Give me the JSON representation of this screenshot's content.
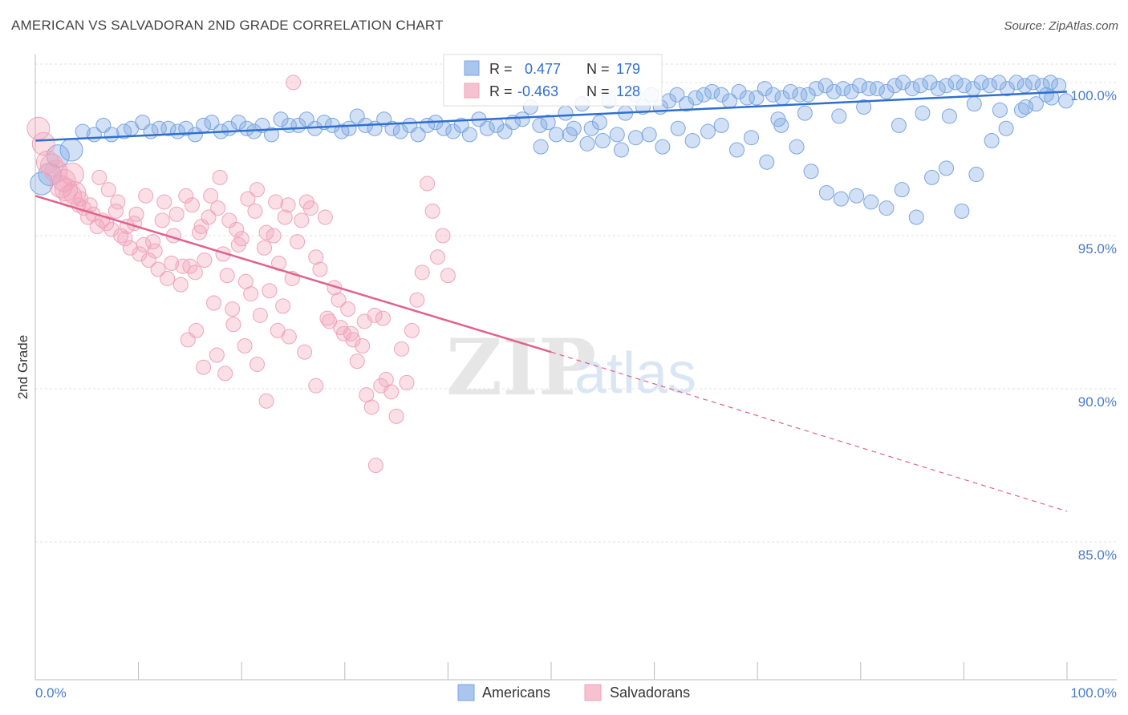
{
  "title": "AMERICAN VS SALVADORAN 2ND GRADE CORRELATION CHART",
  "source": "Source: ZipAtlas.com",
  "watermark": {
    "zip": "ZIP",
    "atlas": "atlas"
  },
  "colors": {
    "american": "#7aa6e3",
    "american_line": "#2f6fd0",
    "salvadoran": "#f0a3bb",
    "salvadoran_line": "#e0628d",
    "tick": "#4a7dc9"
  },
  "stats": {
    "americans": {
      "r_label": "R =",
      "r_value": "0.477",
      "n_label": "N =",
      "n_value": "179"
    },
    "salvadorans": {
      "r_label": "R =",
      "r_value": "-0.463",
      "n_label": "N =",
      "n_value": "128"
    }
  },
  "chart_data": {
    "type": "scatter",
    "title": "AMERICAN VS SALVADORAN 2ND GRADE CORRELATION CHART",
    "xlabel": "",
    "ylabel": "2nd Grade",
    "xlim": [
      0,
      100
    ],
    "ylim": [
      80.5,
      100.6
    ],
    "x_tick_labels": [
      "0.0%",
      "100.0%"
    ],
    "y_ticks": [
      85,
      90,
      95,
      100
    ],
    "y_tick_labels": [
      "85.0%",
      "90.0%",
      "95.0%",
      "100.0%"
    ],
    "grid": true,
    "legend_position": "bottom-center",
    "series": [
      {
        "name": "Americans",
        "color": "#7aa6e3",
        "trend": {
          "x": [
            0,
            100
          ],
          "y": [
            98.1,
            99.7
          ]
        },
        "points": [
          [
            0.6,
            96.7
          ],
          [
            1.4,
            97.0
          ],
          [
            2.2,
            97.6
          ],
          [
            3.5,
            97.8
          ],
          [
            4.6,
            98.4
          ],
          [
            5.7,
            98.3
          ],
          [
            6.6,
            98.6
          ],
          [
            7.4,
            98.3
          ],
          [
            8.6,
            98.4
          ],
          [
            9.3,
            98.5
          ],
          [
            10.4,
            98.7
          ],
          [
            11.2,
            98.4
          ],
          [
            12.0,
            98.5
          ],
          [
            12.9,
            98.5
          ],
          [
            13.8,
            98.4
          ],
          [
            14.6,
            98.5
          ],
          [
            15.5,
            98.3
          ],
          [
            16.3,
            98.6
          ],
          [
            17.1,
            98.7
          ],
          [
            18.0,
            98.4
          ],
          [
            18.8,
            98.5
          ],
          [
            19.7,
            98.7
          ],
          [
            20.5,
            98.5
          ],
          [
            21.2,
            98.4
          ],
          [
            22.0,
            98.6
          ],
          [
            22.9,
            98.3
          ],
          [
            23.8,
            98.8
          ],
          [
            24.6,
            98.6
          ],
          [
            25.5,
            98.6
          ],
          [
            26.3,
            98.8
          ],
          [
            27.1,
            98.5
          ],
          [
            28.0,
            98.7
          ],
          [
            28.8,
            98.6
          ],
          [
            29.7,
            98.4
          ],
          [
            30.4,
            98.5
          ],
          [
            31.2,
            98.9
          ],
          [
            32.0,
            98.6
          ],
          [
            32.9,
            98.5
          ],
          [
            33.8,
            98.8
          ],
          [
            34.6,
            98.5
          ],
          [
            35.4,
            98.4
          ],
          [
            36.3,
            98.6
          ],
          [
            37.1,
            98.3
          ],
          [
            38.0,
            98.6
          ],
          [
            38.8,
            98.7
          ],
          [
            39.6,
            98.5
          ],
          [
            40.5,
            98.4
          ],
          [
            41.3,
            98.6
          ],
          [
            42.1,
            98.3
          ],
          [
            43.0,
            98.8
          ],
          [
            43.8,
            98.5
          ],
          [
            44.7,
            98.6
          ],
          [
            45.5,
            98.4
          ],
          [
            46.3,
            98.7
          ],
          [
            47.2,
            98.8
          ],
          [
            48.0,
            99.2
          ],
          [
            48.9,
            98.6
          ],
          [
            49.7,
            98.7
          ],
          [
            50.5,
            98.3
          ],
          [
            51.4,
            99.0
          ],
          [
            52.2,
            98.5
          ],
          [
            53.0,
            99.3
          ],
          [
            53.9,
            98.5
          ],
          [
            54.7,
            98.7
          ],
          [
            55.6,
            99.4
          ],
          [
            56.4,
            98.3
          ],
          [
            57.2,
            99.0
          ],
          [
            58.1,
            99.6
          ],
          [
            58.9,
            99.2
          ],
          [
            59.7,
            99.6
          ],
          [
            60.6,
            99.2
          ],
          [
            61.4,
            99.4
          ],
          [
            62.2,
            99.6
          ],
          [
            63.1,
            99.3
          ],
          [
            64.0,
            99.5
          ],
          [
            64.8,
            99.6
          ],
          [
            65.6,
            99.7
          ],
          [
            66.5,
            99.6
          ],
          [
            67.3,
            99.4
          ],
          [
            68.2,
            99.7
          ],
          [
            69.0,
            99.5
          ],
          [
            69.9,
            99.5
          ],
          [
            70.7,
            99.8
          ],
          [
            71.5,
            99.6
          ],
          [
            72.4,
            99.5
          ],
          [
            73.2,
            99.7
          ],
          [
            74.1,
            99.6
          ],
          [
            74.9,
            99.6
          ],
          [
            75.7,
            99.8
          ],
          [
            76.6,
            99.9
          ],
          [
            77.4,
            99.7
          ],
          [
            78.3,
            99.8
          ],
          [
            79.1,
            99.7
          ],
          [
            79.9,
            99.9
          ],
          [
            80.8,
            99.8
          ],
          [
            81.6,
            99.8
          ],
          [
            82.5,
            99.7
          ],
          [
            83.3,
            99.9
          ],
          [
            84.1,
            100.0
          ],
          [
            85.0,
            99.8
          ],
          [
            85.8,
            99.9
          ],
          [
            86.7,
            100.0
          ],
          [
            87.5,
            99.8
          ],
          [
            88.3,
            99.9
          ],
          [
            89.2,
            100.0
          ],
          [
            90.0,
            99.9
          ],
          [
            90.9,
            99.8
          ],
          [
            91.7,
            100.0
          ],
          [
            92.5,
            99.9
          ],
          [
            93.4,
            100.0
          ],
          [
            94.2,
            99.8
          ],
          [
            95.1,
            100.0
          ],
          [
            95.9,
            99.9
          ],
          [
            96.7,
            100.0
          ],
          [
            97.6,
            99.9
          ],
          [
            98.4,
            100.0
          ],
          [
            99.2,
            99.9
          ],
          [
            49.0,
            97.9
          ],
          [
            51.8,
            98.3
          ],
          [
            53.5,
            98.0
          ],
          [
            55.0,
            98.1
          ],
          [
            56.8,
            97.8
          ],
          [
            58.2,
            98.2
          ],
          [
            59.5,
            98.3
          ],
          [
            60.8,
            97.9
          ],
          [
            62.3,
            98.5
          ],
          [
            63.7,
            98.1
          ],
          [
            65.2,
            98.4
          ],
          [
            66.5,
            98.6
          ],
          [
            68.0,
            97.8
          ],
          [
            69.4,
            98.2
          ],
          [
            70.9,
            97.4
          ],
          [
            72.3,
            98.6
          ],
          [
            73.8,
            97.9
          ],
          [
            75.2,
            97.1
          ],
          [
            76.7,
            96.4
          ],
          [
            78.1,
            96.2
          ],
          [
            79.6,
            96.3
          ],
          [
            81.0,
            96.1
          ],
          [
            82.5,
            95.9
          ],
          [
            84.0,
            96.5
          ],
          [
            85.4,
            95.6
          ],
          [
            86.9,
            96.9
          ],
          [
            88.3,
            97.2
          ],
          [
            89.8,
            95.8
          ],
          [
            91.2,
            97.0
          ],
          [
            92.7,
            98.1
          ],
          [
            94.1,
            98.5
          ],
          [
            95.6,
            99.1
          ],
          [
            97.0,
            99.3
          ],
          [
            98.5,
            99.5
          ],
          [
            99.9,
            99.4
          ],
          [
            72.0,
            98.8
          ],
          [
            74.6,
            99.0
          ],
          [
            77.9,
            98.9
          ],
          [
            80.3,
            99.2
          ],
          [
            83.7,
            98.6
          ],
          [
            86.0,
            99.0
          ],
          [
            88.6,
            98.9
          ],
          [
            91.0,
            99.3
          ],
          [
            93.5,
            99.1
          ],
          [
            96.0,
            99.2
          ],
          [
            98.0,
            99.6
          ]
        ]
      },
      {
        "name": "Salvadorans",
        "color": "#f0a3bb",
        "trend": {
          "x": [
            0,
            50
          ],
          "y": [
            96.3,
            91.2
          ]
        },
        "trend_extension": {
          "x": [
            50,
            100
          ],
          "y": [
            91.2,
            86.0
          ]
        },
        "points": [
          [
            0.3,
            98.5
          ],
          [
            0.8,
            98.0
          ],
          [
            1.2,
            97.4
          ],
          [
            1.6,
            97.3
          ],
          [
            2.0,
            97.1
          ],
          [
            2.5,
            96.6
          ],
          [
            3.0,
            96.5
          ],
          [
            3.4,
            96.3
          ],
          [
            3.8,
            96.4
          ],
          [
            4.2,
            96.0
          ],
          [
            4.7,
            95.9
          ],
          [
            5.1,
            95.6
          ],
          [
            5.6,
            95.7
          ],
          [
            6.0,
            95.3
          ],
          [
            6.5,
            95.5
          ],
          [
            6.9,
            95.4
          ],
          [
            7.4,
            95.2
          ],
          [
            7.8,
            95.8
          ],
          [
            8.3,
            95.0
          ],
          [
            8.7,
            94.9
          ],
          [
            9.2,
            94.6
          ],
          [
            9.6,
            95.4
          ],
          [
            10.1,
            94.4
          ],
          [
            10.5,
            94.7
          ],
          [
            11.0,
            94.2
          ],
          [
            11.4,
            94.8
          ],
          [
            11.9,
            93.9
          ],
          [
            12.3,
            95.5
          ],
          [
            12.8,
            93.6
          ],
          [
            13.2,
            94.1
          ],
          [
            13.7,
            95.7
          ],
          [
            14.1,
            93.4
          ],
          [
            14.6,
            96.3
          ],
          [
            15.0,
            94.0
          ],
          [
            15.5,
            93.8
          ],
          [
            15.9,
            95.1
          ],
          [
            16.4,
            94.2
          ],
          [
            16.8,
            95.6
          ],
          [
            17.3,
            92.8
          ],
          [
            17.7,
            95.9
          ],
          [
            18.2,
            94.4
          ],
          [
            18.6,
            93.7
          ],
          [
            19.1,
            92.6
          ],
          [
            19.5,
            95.2
          ],
          [
            20.0,
            94.9
          ],
          [
            20.4,
            93.5
          ],
          [
            20.9,
            93.1
          ],
          [
            21.3,
            95.8
          ],
          [
            21.8,
            92.4
          ],
          [
            22.2,
            94.6
          ],
          [
            22.7,
            93.2
          ],
          [
            23.1,
            95.0
          ],
          [
            23.6,
            94.1
          ],
          [
            24.0,
            92.7
          ],
          [
            24.5,
            96.0
          ],
          [
            24.9,
            93.6
          ],
          [
            25.4,
            94.8
          ],
          [
            25.8,
            95.5
          ],
          [
            26.3,
            96.1
          ],
          [
            26.7,
            95.9
          ],
          [
            27.2,
            94.3
          ],
          [
            27.6,
            93.9
          ],
          [
            28.1,
            95.6
          ],
          [
            28.5,
            92.2
          ],
          [
            29.0,
            93.3
          ],
          [
            29.4,
            92.9
          ],
          [
            29.9,
            91.8
          ],
          [
            30.3,
            92.6
          ],
          [
            30.8,
            91.6
          ],
          [
            31.2,
            90.9
          ],
          [
            31.7,
            91.4
          ],
          [
            32.1,
            89.8
          ],
          [
            32.6,
            89.4
          ],
          [
            33.0,
            87.5
          ],
          [
            33.5,
            90.1
          ],
          [
            34.0,
            90.3
          ],
          [
            34.5,
            89.9
          ],
          [
            35.0,
            89.1
          ],
          [
            35.5,
            91.3
          ],
          [
            36.0,
            90.2
          ],
          [
            36.5,
            91.9
          ],
          [
            37.0,
            92.9
          ],
          [
            37.5,
            93.8
          ],
          [
            38.0,
            96.7
          ],
          [
            38.5,
            95.8
          ],
          [
            39.0,
            94.3
          ],
          [
            39.5,
            95.0
          ],
          [
            40.0,
            93.7
          ],
          [
            14.8,
            91.6
          ],
          [
            15.6,
            91.9
          ],
          [
            16.3,
            90.7
          ],
          [
            17.6,
            91.1
          ],
          [
            18.4,
            90.5
          ],
          [
            19.2,
            92.1
          ],
          [
            20.3,
            91.4
          ],
          [
            21.5,
            90.8
          ],
          [
            22.4,
            89.6
          ],
          [
            23.5,
            91.9
          ],
          [
            24.6,
            91.7
          ],
          [
            25.0,
            100.0
          ],
          [
            26.1,
            91.2
          ],
          [
            27.2,
            90.1
          ],
          [
            28.3,
            92.3
          ],
          [
            29.6,
            92.0
          ],
          [
            30.6,
            91.8
          ],
          [
            31.9,
            92.2
          ],
          [
            32.9,
            92.4
          ],
          [
            33.7,
            92.3
          ],
          [
            2.8,
            96.8
          ],
          [
            3.6,
            97.0
          ],
          [
            4.4,
            96.2
          ],
          [
            5.3,
            96.0
          ],
          [
            6.2,
            96.9
          ],
          [
            7.1,
            96.5
          ],
          [
            8.0,
            96.1
          ],
          [
            8.9,
            95.3
          ],
          [
            9.8,
            95.7
          ],
          [
            10.7,
            96.3
          ],
          [
            11.6,
            94.5
          ],
          [
            12.5,
            96.1
          ],
          [
            13.4,
            95.0
          ],
          [
            14.3,
            94.0
          ],
          [
            15.2,
            96.0
          ],
          [
            16.1,
            95.3
          ],
          [
            17.0,
            96.3
          ],
          [
            17.9,
            96.9
          ],
          [
            18.8,
            95.5
          ],
          [
            19.7,
            94.7
          ],
          [
            20.6,
            96.2
          ],
          [
            21.5,
            96.5
          ],
          [
            22.4,
            95.1
          ],
          [
            23.3,
            96.1
          ],
          [
            24.2,
            95.6
          ]
        ]
      }
    ]
  },
  "legend": {
    "americans": "Americans",
    "salvadorans": "Salvadorans"
  }
}
